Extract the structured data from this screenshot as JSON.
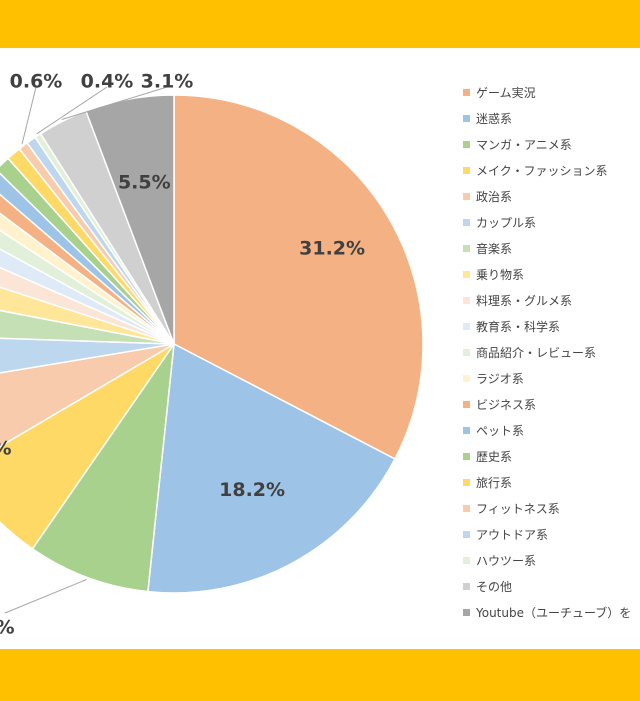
{
  "chart_data": {
    "type": "pie",
    "categories": [
      "ゲーム実況",
      "迷惑系",
      "マンガ・アニメ系",
      "メイク・ファッション系",
      "政治系",
      "カップル系",
      "音楽系",
      "乗り物系",
      "料理系・グルメ系",
      "教育系・科学系",
      "商品紹介・レビュー系",
      "ラジオ系",
      "ビジネス系",
      "ペット系",
      "歴史系",
      "旅行系",
      "フィットネス系",
      "アウトドア系",
      "ハウツー系",
      "その他",
      "Youtube（ユーチューブ）を"
    ],
    "values": [
      31.2,
      18.2,
      7.6,
      6.6,
      5.6,
      3.0,
      2.4,
      1.9,
      1.5,
      1.3,
      1.2,
      1.0,
      1.0,
      1.0,
      1.0,
      0.9,
      0.6,
      0.6,
      0.4,
      3.1,
      5.5
    ],
    "colors": [
      "#f4b183",
      "#9dc3e6",
      "#a9d18e",
      "#ffd966",
      "#f8cbad",
      "#bdd7ee",
      "#c5e0b4",
      "#ffe699",
      "#fbe5d6",
      "#deebf7",
      "#e2f0d9",
      "#fff2cc",
      "#f4b183",
      "#9dc3e6",
      "#a9d18e",
      "#ffd966",
      "#f8cbad",
      "#bdd7ee",
      "#e2f0d9",
      "#d0d0d0",
      "#a6a6a6"
    ],
    "data_labels": [
      {
        "index": 0,
        "text": "31.2%"
      },
      {
        "index": 1,
        "text": "18.2%"
      },
      {
        "index": 2,
        "text": "%"
      },
      {
        "index": 4,
        "text": "%"
      },
      {
        "index": 16,
        "text": "0.6%"
      },
      {
        "index": 18,
        "text": "0.4%"
      },
      {
        "index": 19,
        "text": "3.1%"
      },
      {
        "index": 20,
        "text": "5.5%"
      }
    ],
    "legend_position": "right"
  }
}
